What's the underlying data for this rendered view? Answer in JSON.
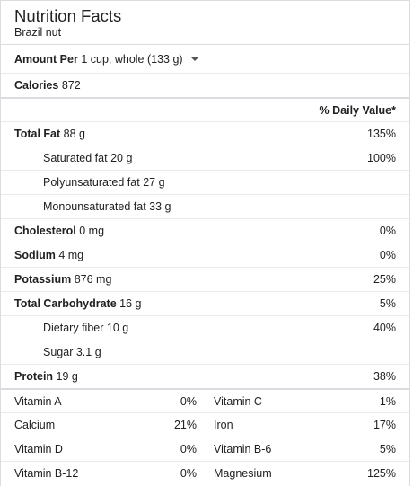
{
  "header": {
    "title": "Nutrition Facts",
    "subtitle": "Brazil nut"
  },
  "amount": {
    "label": "Amount Per",
    "value": "1 cup, whole (133 g)"
  },
  "calories": {
    "label": "Calories",
    "value": "872"
  },
  "daily_value_header": "% Daily Value*",
  "nutrients": [
    {
      "label": "Total Fat",
      "amount": "88 g",
      "dv": "135%"
    },
    {
      "label": "Saturated fat",
      "amount": "20 g",
      "dv": "100%"
    },
    {
      "label": "Polyunsaturated fat",
      "amount": "27 g",
      "dv": ""
    },
    {
      "label": "Monounsaturated fat",
      "amount": "33 g",
      "dv": ""
    },
    {
      "label": "Cholesterol",
      "amount": "0 mg",
      "dv": "0%"
    },
    {
      "label": "Sodium",
      "amount": "4 mg",
      "dv": "0%"
    },
    {
      "label": "Potassium",
      "amount": "876 mg",
      "dv": "25%"
    },
    {
      "label": "Total Carbohydrate",
      "amount": "16 g",
      "dv": "5%"
    },
    {
      "label": "Dietary fiber",
      "amount": "10 g",
      "dv": "40%"
    },
    {
      "label": "Sugar",
      "amount": "3.1 g",
      "dv": ""
    },
    {
      "label": "Protein",
      "amount": "19 g",
      "dv": "38%"
    }
  ],
  "vitamins": [
    {
      "left_name": "Vitamin A",
      "left_value": "0%",
      "right_name": "Vitamin C",
      "right_value": "1%"
    },
    {
      "left_name": "Calcium",
      "left_value": "21%",
      "right_name": "Iron",
      "right_value": "17%"
    },
    {
      "left_name": "Vitamin D",
      "left_value": "0%",
      "right_name": "Vitamin B-6",
      "right_value": "5%"
    },
    {
      "left_name": "Vitamin B-12",
      "left_value": "0%",
      "right_name": "Magnesium",
      "right_value": "125%"
    }
  ]
}
